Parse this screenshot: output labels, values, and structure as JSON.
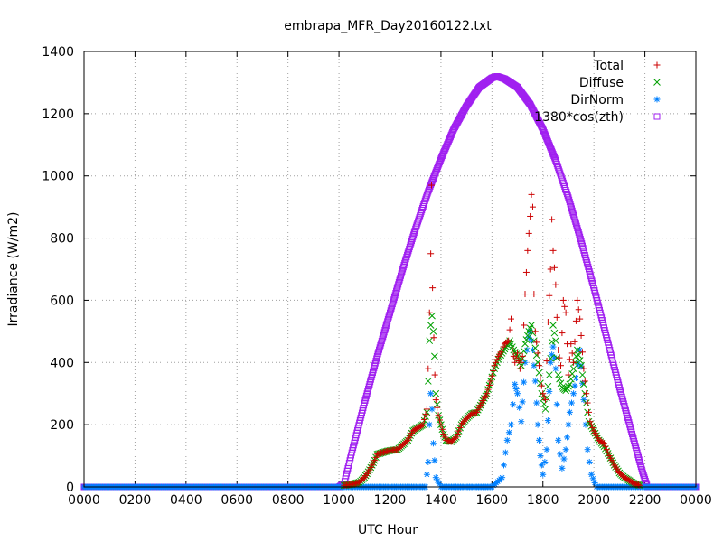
{
  "chart_data": {
    "type": "scatter",
    "title": "embrapa_MFR_Day20160122.txt",
    "xlabel": "UTC Hour",
    "ylabel": "Irradiance (W/m2)",
    "xlim": [
      0,
      24
    ],
    "ylim": [
      0,
      1400
    ],
    "x_ticks": [
      "0000",
      "0200",
      "0400",
      "0600",
      "0800",
      "1000",
      "1200",
      "1400",
      "1600",
      "1800",
      "2000",
      "2200",
      "0000"
    ],
    "y_ticks": [
      "0",
      "200",
      "400",
      "600",
      "800",
      "1000",
      "1200",
      "1400"
    ],
    "grid": true,
    "legend_position": "top-right",
    "series": [
      {
        "name": "Total",
        "marker": "plus",
        "color": "#cc0000",
        "points": [
          [
            10.2,
            5
          ],
          [
            10.5,
            8
          ],
          [
            10.8,
            15
          ],
          [
            11.0,
            30
          ],
          [
            11.2,
            55
          ],
          [
            11.4,
            85
          ],
          [
            11.5,
            105
          ],
          [
            11.7,
            110
          ],
          [
            11.9,
            115
          ],
          [
            12.1,
            118
          ],
          [
            12.3,
            120
          ],
          [
            12.5,
            135
          ],
          [
            12.7,
            150
          ],
          [
            12.8,
            165
          ],
          [
            12.9,
            180
          ],
          [
            13.1,
            190
          ],
          [
            13.3,
            200
          ],
          [
            13.45,
            250
          ],
          [
            13.5,
            380
          ],
          [
            13.55,
            560
          ],
          [
            13.6,
            750
          ],
          [
            13.63,
            970
          ],
          [
            13.67,
            640
          ],
          [
            13.72,
            480
          ],
          [
            13.76,
            360
          ],
          [
            13.8,
            280
          ],
          [
            13.9,
            230
          ],
          [
            14.0,
            200
          ],
          [
            14.1,
            170
          ],
          [
            14.2,
            150
          ],
          [
            14.4,
            145
          ],
          [
            14.6,
            160
          ],
          [
            14.8,
            200
          ],
          [
            15.0,
            220
          ],
          [
            15.2,
            235
          ],
          [
            15.4,
            240
          ],
          [
            15.6,
            270
          ],
          [
            15.8,
            300
          ],
          [
            15.95,
            340
          ],
          [
            16.1,
            390
          ],
          [
            16.25,
            420
          ],
          [
            16.4,
            440
          ],
          [
            16.5,
            460
          ],
          [
            16.65,
            470
          ],
          [
            16.75,
            540
          ],
          [
            16.8,
            440
          ],
          [
            16.9,
            400
          ],
          [
            17.0,
            430
          ],
          [
            17.1,
            380
          ],
          [
            17.2,
            420
          ],
          [
            17.3,
            620
          ],
          [
            17.4,
            760
          ],
          [
            17.5,
            870
          ],
          [
            17.55,
            940
          ],
          [
            17.6,
            900
          ],
          [
            17.65,
            620
          ],
          [
            17.7,
            500
          ],
          [
            17.8,
            430
          ],
          [
            17.9,
            350
          ],
          [
            18.0,
            300
          ],
          [
            18.1,
            280
          ],
          [
            18.2,
            530
          ],
          [
            18.3,
            700
          ],
          [
            18.35,
            860
          ],
          [
            18.4,
            760
          ],
          [
            18.5,
            650
          ],
          [
            18.6,
            440
          ],
          [
            18.7,
            390
          ],
          [
            18.8,
            600
          ],
          [
            18.9,
            560
          ],
          [
            19.0,
            360
          ],
          [
            19.1,
            460
          ],
          [
            19.2,
            400
          ],
          [
            19.35,
            600
          ],
          [
            19.45,
            540
          ],
          [
            19.6,
            380
          ],
          [
            19.7,
            300
          ],
          [
            19.85,
            210
          ],
          [
            20.0,
            180
          ],
          [
            20.2,
            150
          ],
          [
            20.4,
            140
          ],
          [
            20.6,
            100
          ],
          [
            20.8,
            70
          ],
          [
            21.0,
            45
          ],
          [
            21.2,
            30
          ],
          [
            21.4,
            20
          ],
          [
            21.6,
            10
          ],
          [
            21.8,
            5
          ]
        ]
      },
      {
        "name": "Diffuse",
        "marker": "cross",
        "color": "#00a000",
        "points": [
          [
            10.2,
            5
          ],
          [
            10.5,
            8
          ],
          [
            10.8,
            15
          ],
          [
            11.0,
            30
          ],
          [
            11.2,
            55
          ],
          [
            11.4,
            85
          ],
          [
            11.5,
            105
          ],
          [
            11.7,
            110
          ],
          [
            11.9,
            115
          ],
          [
            12.1,
            118
          ],
          [
            12.3,
            120
          ],
          [
            12.5,
            135
          ],
          [
            12.7,
            150
          ],
          [
            12.8,
            165
          ],
          [
            12.9,
            180
          ],
          [
            13.1,
            190
          ],
          [
            13.3,
            200
          ],
          [
            13.45,
            240
          ],
          [
            13.5,
            340
          ],
          [
            13.55,
            470
          ],
          [
            13.6,
            520
          ],
          [
            13.65,
            550
          ],
          [
            13.7,
            500
          ],
          [
            13.75,
            420
          ],
          [
            13.8,
            300
          ],
          [
            13.9,
            230
          ],
          [
            14.0,
            200
          ],
          [
            14.1,
            170
          ],
          [
            14.2,
            150
          ],
          [
            14.4,
            145
          ],
          [
            14.6,
            160
          ],
          [
            14.8,
            200
          ],
          [
            15.0,
            220
          ],
          [
            15.2,
            235
          ],
          [
            15.4,
            240
          ],
          [
            15.6,
            270
          ],
          [
            15.8,
            300
          ],
          [
            15.95,
            340
          ],
          [
            16.1,
            380
          ],
          [
            16.25,
            410
          ],
          [
            16.4,
            430
          ],
          [
            16.55,
            450
          ],
          [
            16.7,
            470
          ],
          [
            16.85,
            440
          ],
          [
            17.0,
            420
          ],
          [
            17.15,
            390
          ],
          [
            17.3,
            460
          ],
          [
            17.45,
            500
          ],
          [
            17.55,
            520
          ],
          [
            17.65,
            470
          ],
          [
            17.8,
            400
          ],
          [
            17.95,
            300
          ],
          [
            18.1,
            250
          ],
          [
            18.25,
            360
          ],
          [
            18.4,
            520
          ],
          [
            18.5,
            470
          ],
          [
            18.6,
            360
          ],
          [
            18.75,
            320
          ],
          [
            18.9,
            310
          ],
          [
            19.05,
            330
          ],
          [
            19.2,
            380
          ],
          [
            19.35,
            440
          ],
          [
            19.5,
            390
          ],
          [
            19.65,
            300
          ],
          [
            19.8,
            210
          ],
          [
            20.0,
            180
          ],
          [
            20.2,
            150
          ],
          [
            20.4,
            130
          ],
          [
            20.6,
            100
          ],
          [
            20.8,
            70
          ],
          [
            21.0,
            45
          ],
          [
            21.2,
            30
          ],
          [
            21.4,
            20
          ],
          [
            21.6,
            10
          ],
          [
            21.8,
            5
          ]
        ]
      },
      {
        "name": "DirNorm",
        "marker": "star",
        "color": "#0080ff",
        "points": [
          [
            0.0,
            0
          ],
          [
            2.0,
            0
          ],
          [
            4.0,
            0
          ],
          [
            6.0,
            0
          ],
          [
            8.0,
            0
          ],
          [
            10.0,
            0
          ],
          [
            12.0,
            0
          ],
          [
            13.4,
            0
          ],
          [
            13.5,
            80
          ],
          [
            13.55,
            200
          ],
          [
            13.6,
            300
          ],
          [
            13.65,
            250
          ],
          [
            13.7,
            140
          ],
          [
            13.8,
            30
          ],
          [
            14.0,
            0
          ],
          [
            15.0,
            0
          ],
          [
            16.0,
            0
          ],
          [
            16.4,
            30
          ],
          [
            16.6,
            150
          ],
          [
            16.75,
            200
          ],
          [
            16.9,
            330
          ],
          [
            17.0,
            300
          ],
          [
            17.15,
            210
          ],
          [
            17.3,
            400
          ],
          [
            17.45,
            480
          ],
          [
            17.5,
            500
          ],
          [
            17.6,
            440
          ],
          [
            17.7,
            340
          ],
          [
            17.8,
            200
          ],
          [
            17.9,
            100
          ],
          [
            18.0,
            40
          ],
          [
            18.15,
            120
          ],
          [
            18.3,
            400
          ],
          [
            18.4,
            450
          ],
          [
            18.5,
            380
          ],
          [
            18.6,
            150
          ],
          [
            18.75,
            60
          ],
          [
            18.9,
            120
          ],
          [
            19.05,
            240
          ],
          [
            19.2,
            300
          ],
          [
            19.3,
            350
          ],
          [
            19.45,
            440
          ],
          [
            19.6,
            280
          ],
          [
            19.75,
            120
          ],
          [
            19.9,
            40
          ],
          [
            20.1,
            0
          ],
          [
            22.0,
            0
          ],
          [
            24.0,
            0
          ]
        ]
      },
      {
        "name": "1380*cos(zth)",
        "marker": "square",
        "color": "#a020f0",
        "points": [
          [
            0.0,
            0
          ],
          [
            2.0,
            0
          ],
          [
            4.0,
            0
          ],
          [
            6.0,
            0
          ],
          [
            8.0,
            0
          ],
          [
            10.0,
            0
          ],
          [
            10.2,
            10
          ],
          [
            10.5,
            110
          ],
          [
            11.0,
            270
          ],
          [
            11.5,
            420
          ],
          [
            12.0,
            560
          ],
          [
            12.5,
            700
          ],
          [
            13.0,
            830
          ],
          [
            13.5,
            950
          ],
          [
            14.0,
            1055
          ],
          [
            14.5,
            1150
          ],
          [
            15.0,
            1225
          ],
          [
            15.5,
            1285
          ],
          [
            16.0,
            1315
          ],
          [
            16.2,
            1320
          ],
          [
            16.5,
            1312
          ],
          [
            17.0,
            1285
          ],
          [
            17.5,
            1230
          ],
          [
            18.0,
            1150
          ],
          [
            18.5,
            1050
          ],
          [
            19.0,
            930
          ],
          [
            19.5,
            790
          ],
          [
            20.0,
            640
          ],
          [
            20.5,
            480
          ],
          [
            21.0,
            320
          ],
          [
            21.5,
            170
          ],
          [
            21.9,
            50
          ],
          [
            22.1,
            0
          ],
          [
            24.0,
            0
          ]
        ]
      }
    ]
  }
}
